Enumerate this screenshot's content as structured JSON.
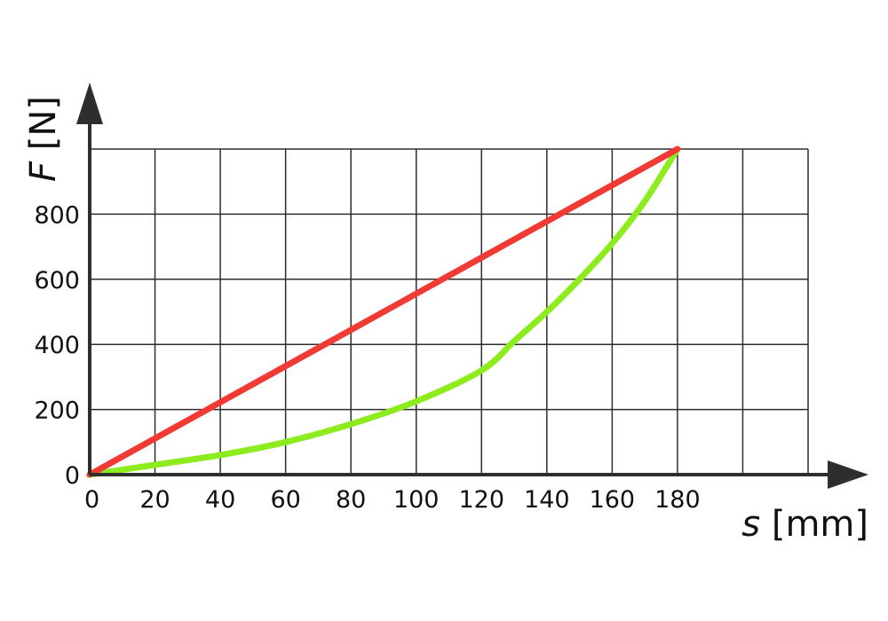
{
  "chart_data": {
    "type": "line",
    "xlabel_var": "s",
    "xlabel_unit": "[mm]",
    "ylabel_var": "F",
    "ylabel_unit": "[N]",
    "xlim": [
      0,
      220
    ],
    "ylim": [
      0,
      1000
    ],
    "x_ticks": [
      0,
      20,
      40,
      60,
      80,
      100,
      120,
      140,
      160,
      180
    ],
    "y_ticks": [
      0,
      200,
      400,
      600,
      800
    ],
    "grid": true,
    "series": [
      {
        "color": "#f23a35",
        "x": [
          0,
          180
        ],
        "y": [
          0,
          1000
        ]
      },
      {
        "color": "#8cec1e",
        "x": [
          0,
          20,
          40,
          60,
          80,
          100,
          120,
          130,
          140,
          150,
          160,
          170,
          180
        ],
        "y": [
          0,
          30,
          60,
          100,
          155,
          225,
          320,
          410,
          500,
          600,
          710,
          840,
          1000
        ]
      }
    ]
  }
}
